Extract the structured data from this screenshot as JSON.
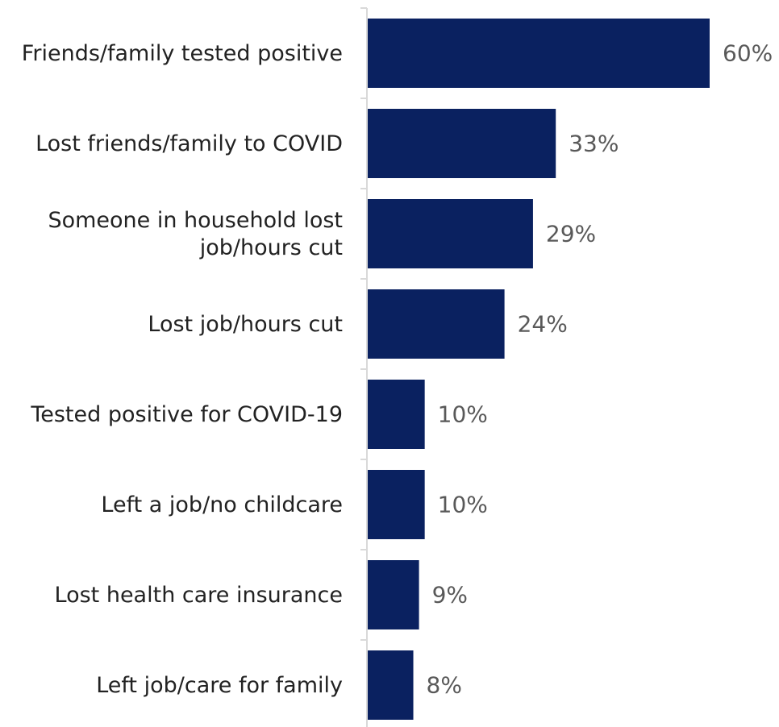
{
  "chart_data": {
    "type": "bar",
    "orientation": "horizontal",
    "categories": [
      [
        "Friends/family tested positive"
      ],
      [
        "Lost friends/family to COVID"
      ],
      [
        "Someone in household lost",
        "job/hours cut"
      ],
      [
        "Lost job/hours cut"
      ],
      [
        "Tested positive for COVID-19"
      ],
      [
        "Left a job/no childcare"
      ],
      [
        "Lost health care insurance"
      ],
      [
        "Left job/care for family"
      ]
    ],
    "values": [
      60,
      33,
      29,
      24,
      10,
      10,
      9,
      8
    ],
    "value_labels": [
      "60%",
      "33%",
      "29%",
      "24%",
      "10%",
      "10%",
      "9%",
      "8%"
    ],
    "unit": "%",
    "xlim": [
      0,
      60
    ],
    "grid": false,
    "legend": "none",
    "bar_color": "#0a2160",
    "label_color": "#222222",
    "value_label_color": "#595959",
    "axis_color": "#d9d9d9"
  }
}
